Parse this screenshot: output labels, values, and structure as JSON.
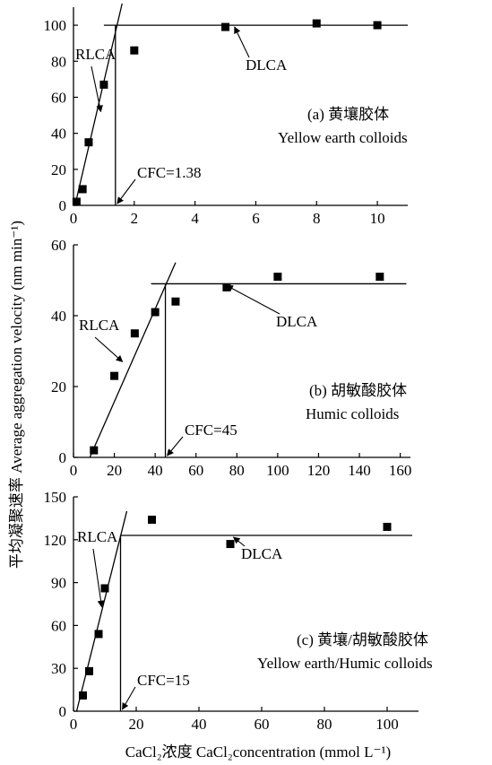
{
  "figure": {
    "ylabel": "平均凝聚速率 Average aggregation velocity (nm min⁻¹)",
    "xlabel": "CaCl₂浓度 CaCl₂concentration (mmol L⁻¹)"
  },
  "chart_data": [
    {
      "type": "scatter",
      "title_cn": "(a) 黄壤胶体",
      "title_en": "Yellow earth colloids",
      "xlim": [
        0,
        11
      ],
      "ylim": [
        0,
        110
      ],
      "xticks": [
        0,
        2,
        4,
        6,
        8,
        10
      ],
      "yticks": [
        0,
        20,
        40,
        60,
        80,
        100
      ],
      "points": [
        [
          0.1,
          2
        ],
        [
          0.3,
          9
        ],
        [
          0.5,
          35
        ],
        [
          1.0,
          67
        ],
        [
          2.0,
          86
        ],
        [
          5.0,
          99
        ],
        [
          8.0,
          101
        ],
        [
          10.0,
          100
        ]
      ],
      "rlca_line": [
        [
          0.05,
          0
        ],
        [
          1.6,
          112
        ]
      ],
      "dlca_line": [
        [
          1.0,
          100
        ],
        [
          11.0,
          100
        ]
      ],
      "cfc_value": 1.38,
      "cfc_label": "CFC=1.38",
      "rlca_label": "RLCA",
      "dlca_label": "DLCA",
      "rlca_arrow_target": [
        0.9,
        52
      ],
      "dlca_arrow_target": [
        5.3,
        100
      ],
      "cfc_arrow_target": [
        1.38,
        0
      ]
    },
    {
      "type": "scatter",
      "title_cn": "(b) 胡敏酸胶体",
      "title_en": "Humic colloids",
      "xlim": [
        0,
        165
      ],
      "ylim": [
        0,
        60
      ],
      "xticks": [
        0,
        20,
        40,
        60,
        80,
        100,
        120,
        140,
        160
      ],
      "yticks": [
        0,
        20,
        40,
        60
      ],
      "points": [
        [
          10,
          2
        ],
        [
          20,
          23
        ],
        [
          30,
          35
        ],
        [
          40,
          41
        ],
        [
          50,
          44
        ],
        [
          75,
          48
        ],
        [
          100,
          51
        ],
        [
          150,
          51
        ]
      ],
      "rlca_line": [
        [
          8,
          0
        ],
        [
          50,
          55
        ]
      ],
      "dlca_line": [
        [
          38,
          49
        ],
        [
          163,
          49
        ]
      ],
      "cfc_value": 45,
      "cfc_label": "CFC=45",
      "rlca_label": "RLCA",
      "dlca_label": "DLCA",
      "rlca_arrow_target": [
        24,
        27
      ],
      "dlca_arrow_target": [
        75,
        49
      ],
      "cfc_arrow_target": [
        45,
        0
      ]
    },
    {
      "type": "scatter",
      "title_cn": "(c) 黄壤/胡敏酸胶体",
      "title_en": "Yellow earth/Humic colloids",
      "xlim": [
        0,
        110
      ],
      "ylim": [
        0,
        150
      ],
      "xticks": [
        0,
        20,
        40,
        60,
        80,
        100
      ],
      "yticks": [
        0,
        30,
        60,
        90,
        120,
        150
      ],
      "points": [
        [
          3,
          11
        ],
        [
          5,
          28
        ],
        [
          8,
          54
        ],
        [
          10,
          86
        ],
        [
          25,
          134
        ],
        [
          50,
          117
        ],
        [
          100,
          129
        ]
      ],
      "rlca_line": [
        [
          1,
          0
        ],
        [
          17,
          140
        ]
      ],
      "dlca_line": [
        [
          15,
          123
        ],
        [
          108,
          123
        ]
      ],
      "cfc_value": 15,
      "cfc_label": "CFC=15",
      "rlca_label": "RLCA",
      "dlca_label": "DLCA",
      "rlca_arrow_target": [
        9,
        73
      ],
      "dlca_arrow_target": [
        51,
        123
      ],
      "cfc_arrow_target": [
        15,
        0
      ]
    }
  ]
}
